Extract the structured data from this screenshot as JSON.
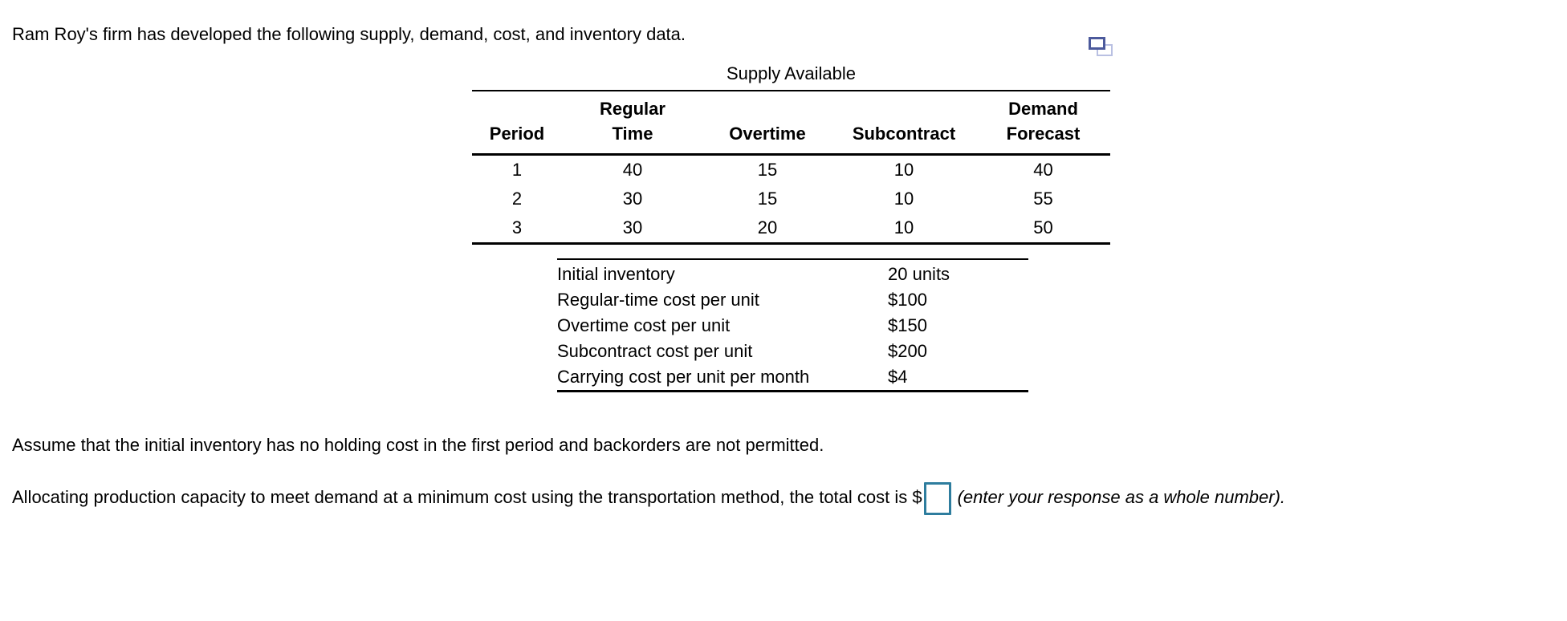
{
  "header": {
    "intro": "Ram Roy's firm has developed the following supply, demand, cost, and inventory data."
  },
  "icons": {
    "compare_windows": "compare-windows-icon"
  },
  "supply_table": {
    "title": "Supply Available",
    "columns": [
      "Period",
      "Regular\nTime",
      "Overtime",
      "Subcontract",
      "Demand\nForecast"
    ],
    "rows": [
      [
        "1",
        "40",
        "15",
        "10",
        "40"
      ],
      [
        "2",
        "30",
        "15",
        "10",
        "55"
      ],
      [
        "3",
        "30",
        "20",
        "10",
        "50"
      ]
    ]
  },
  "cost_table": {
    "rows": [
      {
        "label": "Initial inventory",
        "value": "20 units"
      },
      {
        "label": "Regular-time cost per unit",
        "value": "$100"
      },
      {
        "label": "Overtime cost per unit",
        "value": "$150"
      },
      {
        "label": "Subcontract cost per unit",
        "value": "$200"
      },
      {
        "label": "Carrying cost per unit per month",
        "value": "$4"
      }
    ]
  },
  "assumption": "Assume that the initial inventory has no holding cost in the first period and backorders are not permitted.",
  "question": {
    "prefix": "Allocating production capacity to meet demand at a minimum cost using the transportation method, the total cost is $",
    "answer_value": "",
    "suffix": "(enter your response as a whole number)."
  },
  "colors": {
    "answer_box_border": "#2e7d9e",
    "icon_front_border": "#4c5a9c",
    "icon_back_border": "#b9c0e2"
  }
}
